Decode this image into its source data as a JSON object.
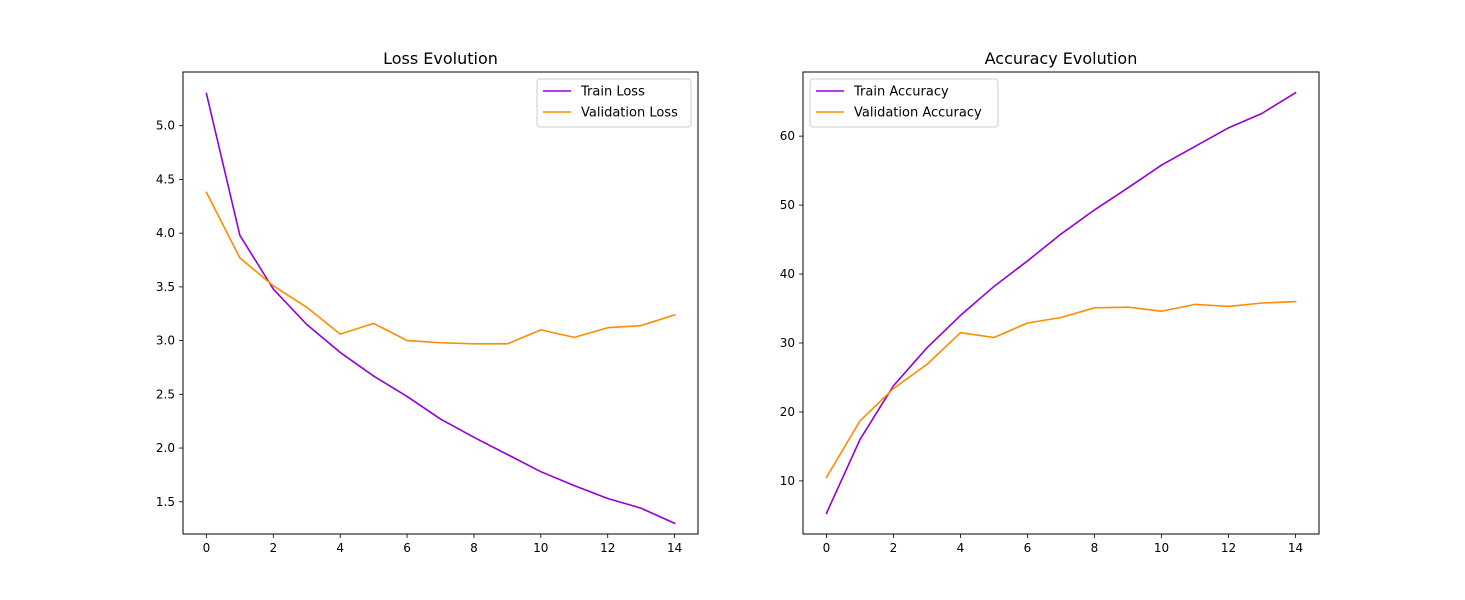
{
  "chart_data": [
    {
      "type": "line",
      "title": "Loss Evolution",
      "xlabel": "",
      "ylabel": "",
      "x": [
        0,
        1,
        2,
        3,
        4,
        5,
        6,
        7,
        8,
        9,
        10,
        11,
        12,
        13,
        14
      ],
      "xlim": [
        -0.7,
        14.7
      ],
      "ylim": [
        1.2,
        5.5
      ],
      "xticks": [
        0,
        2,
        4,
        6,
        8,
        10,
        12,
        14
      ],
      "yticks": [
        1.5,
        2.0,
        2.5,
        3.0,
        3.5,
        4.0,
        4.5,
        5.0
      ],
      "ytick_format": 1,
      "grid": false,
      "legend": "top-right",
      "series": [
        {
          "name": "Train Loss",
          "color": "#9400D3",
          "values": [
            5.3,
            3.98,
            3.48,
            3.15,
            2.89,
            2.67,
            2.48,
            2.27,
            2.1,
            1.94,
            1.78,
            1.65,
            1.53,
            1.44,
            1.3
          ]
        },
        {
          "name": "Validation Loss",
          "color": "#FF8C00",
          "values": [
            4.38,
            3.77,
            3.51,
            3.31,
            3.06,
            3.16,
            3.0,
            2.98,
            2.97,
            2.97,
            3.1,
            3.03,
            3.12,
            3.14,
            3.24
          ]
        }
      ]
    },
    {
      "type": "line",
      "title": "Accuracy Evolution",
      "xlabel": "",
      "ylabel": "",
      "x": [
        0,
        1,
        2,
        3,
        4,
        5,
        6,
        7,
        8,
        9,
        10,
        11,
        12,
        13,
        14
      ],
      "xlim": [
        -0.7,
        14.7
      ],
      "ylim": [
        2.3,
        69.3
      ],
      "xticks": [
        0,
        2,
        4,
        6,
        8,
        10,
        12,
        14
      ],
      "yticks": [
        10,
        20,
        30,
        40,
        50,
        60
      ],
      "ytick_format": 0,
      "grid": false,
      "legend": "top-left",
      "series": [
        {
          "name": "Train Accuracy",
          "color": "#9400D3",
          "values": [
            5.3,
            16.0,
            23.8,
            29.3,
            34.0,
            38.2,
            41.9,
            45.8,
            49.3,
            52.5,
            55.8,
            58.5,
            61.2,
            63.3,
            66.3
          ]
        },
        {
          "name": "Validation Accuracy",
          "color": "#FF8C00",
          "values": [
            10.5,
            18.7,
            23.4,
            26.9,
            31.5,
            30.8,
            32.9,
            33.7,
            35.1,
            35.2,
            34.6,
            35.6,
            35.3,
            35.8,
            36.0
          ]
        }
      ]
    }
  ]
}
